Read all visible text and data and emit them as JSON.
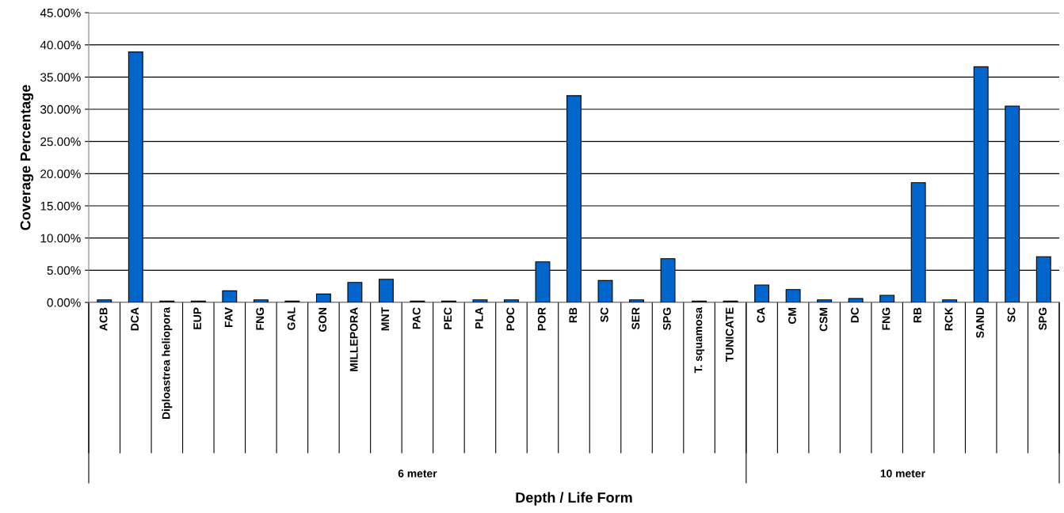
{
  "chart_data": {
    "type": "bar",
    "ylabel": "Coverage Percentage",
    "categories": [
      "ACB",
      "DCA",
      "Diploastrea heliopora",
      "EUP",
      "FAV",
      "FNG",
      "GAL",
      "GON",
      "MILLEPORA",
      "MNT",
      "PAC",
      "PEC",
      "PLA",
      "POC",
      "POR",
      "RB",
      "SC",
      "SER",
      "SPG",
      "T. squamosa",
      "TUNICATE",
      "CA",
      "CM",
      "CSM",
      "DC",
      "FNG",
      "RB",
      "RCK",
      "SAND",
      "SC",
      "SPG"
    ],
    "series": [
      {
        "color": "#0066cc",
        "values": [
          0.4,
          38.9,
          0.2,
          0.2,
          1.8,
          0.4,
          0.2,
          1.3,
          3.1,
          3.6,
          0.2,
          0.2,
          0.4,
          0.4,
          6.3,
          32.1,
          3.4,
          0.4,
          6.8,
          0.2,
          0.2,
          2.7,
          2.0,
          0.4,
          0.6,
          1.1,
          18.6,
          0.4,
          36.6,
          30.5,
          7.1
        ]
      }
    ],
    "ylim": [
      0,
      45
    ],
    "yticks": [
      {
        "value": 0,
        "label": "0.00%"
      },
      {
        "value": 5,
        "label": "5.00%"
      },
      {
        "value": 10,
        "label": "10.00%"
      },
      {
        "value": 15,
        "label": "15.00%"
      },
      {
        "value": 20,
        "label": "20.00%"
      },
      {
        "value": 25,
        "label": "25.00%"
      },
      {
        "value": 30,
        "label": "30.00%"
      },
      {
        "value": 35,
        "label": "35.00%"
      },
      {
        "value": 40,
        "label": "40.00%"
      },
      {
        "value": 45,
        "label": "45.00%"
      }
    ],
    "grid": "y",
    "legend": false,
    "annotations": [
      "6 meter",
      "10 meter",
      "Depth / Life Form"
    ]
  }
}
